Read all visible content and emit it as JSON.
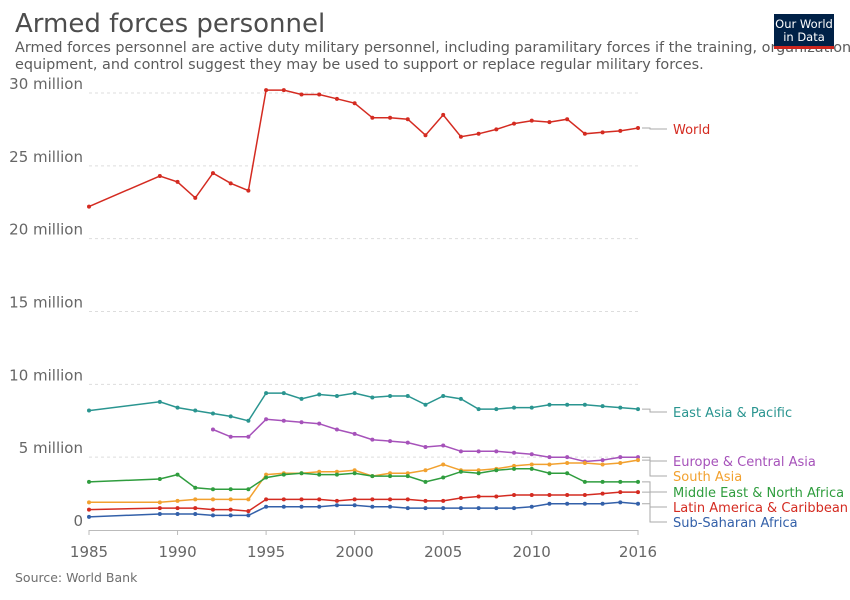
{
  "header": {
    "title": "Armed forces personnel",
    "subtitle": "Armed forces personnel are active duty military personnel, including paramilitary forces if the training, organization, equipment, and control suggest they may be used to support or replace regular military forces."
  },
  "logo": {
    "line1": "Our World",
    "line2": "in Data"
  },
  "footer": {
    "source": "Source: World Bank"
  },
  "chart_data": {
    "type": "line",
    "title": "Armed forces personnel",
    "xlim": [
      1985,
      2016
    ],
    "ylim": [
      0,
      30000000
    ],
    "x_ticks": [
      1985,
      1990,
      1995,
      2000,
      2005,
      2010,
      2016
    ],
    "y_ticks": [
      {
        "value": 0,
        "label": "0"
      },
      {
        "value": 5000000,
        "label": "5 million"
      },
      {
        "value": 10000000,
        "label": "10 million"
      },
      {
        "value": 15000000,
        "label": "15 million"
      },
      {
        "value": 20000000,
        "label": "20 million"
      },
      {
        "value": 25000000,
        "label": "25 million"
      },
      {
        "value": 30000000,
        "label": "30 million"
      }
    ],
    "grid": "horizontal-dashed",
    "legend": "right-end-labels",
    "series": [
      {
        "name": "World",
        "color": "#d42b21",
        "points": [
          [
            1985,
            22200000
          ],
          [
            1989,
            24300000
          ],
          [
            1990,
            23900000
          ],
          [
            1991,
            22800000
          ],
          [
            1992,
            24500000
          ],
          [
            1993,
            23800000
          ],
          [
            1994,
            23300000
          ],
          [
            1995,
            30200000
          ],
          [
            1996,
            30200000
          ],
          [
            1997,
            29900000
          ],
          [
            1998,
            29900000
          ],
          [
            1999,
            29600000
          ],
          [
            2000,
            29300000
          ],
          [
            2001,
            28300000
          ],
          [
            2002,
            28300000
          ],
          [
            2003,
            28200000
          ],
          [
            2004,
            27100000
          ],
          [
            2005,
            28500000
          ],
          [
            2006,
            27000000
          ],
          [
            2007,
            27200000
          ],
          [
            2008,
            27500000
          ],
          [
            2009,
            27900000
          ],
          [
            2010,
            28100000
          ],
          [
            2011,
            28000000
          ],
          [
            2012,
            28200000
          ],
          [
            2013,
            27200000
          ],
          [
            2014,
            27300000
          ],
          [
            2015,
            27400000
          ],
          [
            2016,
            27600000
          ]
        ]
      },
      {
        "name": "East Asia & Pacific",
        "color": "#2a9590",
        "points": [
          [
            1985,
            8200000
          ],
          [
            1989,
            8800000
          ],
          [
            1990,
            8400000
          ],
          [
            1991,
            8200000
          ],
          [
            1992,
            8000000
          ],
          [
            1993,
            7800000
          ],
          [
            1994,
            7500000
          ],
          [
            1995,
            9400000
          ],
          [
            1996,
            9400000
          ],
          [
            1997,
            9000000
          ],
          [
            1998,
            9300000
          ],
          [
            1999,
            9200000
          ],
          [
            2000,
            9400000
          ],
          [
            2001,
            9100000
          ],
          [
            2002,
            9200000
          ],
          [
            2003,
            9200000
          ],
          [
            2004,
            8600000
          ],
          [
            2005,
            9200000
          ],
          [
            2006,
            9000000
          ],
          [
            2007,
            8300000
          ],
          [
            2008,
            8300000
          ],
          [
            2009,
            8400000
          ],
          [
            2010,
            8400000
          ],
          [
            2011,
            8600000
          ],
          [
            2012,
            8600000
          ],
          [
            2013,
            8600000
          ],
          [
            2014,
            8500000
          ],
          [
            2015,
            8400000
          ],
          [
            2016,
            8300000
          ]
        ]
      },
      {
        "name": "Europe & Central Asia",
        "color": "#a652ba",
        "points": [
          [
            1992,
            6900000
          ],
          [
            1993,
            6400000
          ],
          [
            1994,
            6400000
          ],
          [
            1995,
            7600000
          ],
          [
            1996,
            7500000
          ],
          [
            1997,
            7400000
          ],
          [
            1998,
            7300000
          ],
          [
            1999,
            6900000
          ],
          [
            2000,
            6600000
          ],
          [
            2001,
            6200000
          ],
          [
            2002,
            6100000
          ],
          [
            2003,
            6000000
          ],
          [
            2004,
            5700000
          ],
          [
            2005,
            5800000
          ],
          [
            2006,
            5400000
          ],
          [
            2007,
            5400000
          ],
          [
            2008,
            5400000
          ],
          [
            2009,
            5300000
          ],
          [
            2010,
            5200000
          ],
          [
            2011,
            5000000
          ],
          [
            2012,
            5000000
          ],
          [
            2013,
            4700000
          ],
          [
            2014,
            4800000
          ],
          [
            2015,
            5000000
          ],
          [
            2016,
            5000000
          ]
        ]
      },
      {
        "name": "South Asia",
        "color": "#f2a12f",
        "points": [
          [
            1985,
            1900000
          ],
          [
            1989,
            1900000
          ],
          [
            1990,
            2000000
          ],
          [
            1991,
            2100000
          ],
          [
            1992,
            2100000
          ],
          [
            1993,
            2100000
          ],
          [
            1994,
            2100000
          ],
          [
            1995,
            3800000
          ],
          [
            1996,
            3900000
          ],
          [
            1997,
            3900000
          ],
          [
            1998,
            4000000
          ],
          [
            1999,
            4000000
          ],
          [
            2000,
            4100000
          ],
          [
            2001,
            3700000
          ],
          [
            2002,
            3900000
          ],
          [
            2003,
            3900000
          ],
          [
            2004,
            4100000
          ],
          [
            2005,
            4500000
          ],
          [
            2006,
            4100000
          ],
          [
            2007,
            4100000
          ],
          [
            2008,
            4200000
          ],
          [
            2009,
            4400000
          ],
          [
            2010,
            4500000
          ],
          [
            2011,
            4500000
          ],
          [
            2012,
            4600000
          ],
          [
            2013,
            4600000
          ],
          [
            2014,
            4500000
          ],
          [
            2015,
            4600000
          ],
          [
            2016,
            4800000
          ]
        ]
      },
      {
        "name": "Middle East & North Africa",
        "color": "#2f9d3e",
        "points": [
          [
            1985,
            3300000
          ],
          [
            1989,
            3500000
          ],
          [
            1990,
            3800000
          ],
          [
            1991,
            2900000
          ],
          [
            1992,
            2800000
          ],
          [
            1993,
            2800000
          ],
          [
            1994,
            2800000
          ],
          [
            1995,
            3600000
          ],
          [
            1996,
            3800000
          ],
          [
            1997,
            3900000
          ],
          [
            1998,
            3800000
          ],
          [
            1999,
            3800000
          ],
          [
            2000,
            3900000
          ],
          [
            2001,
            3700000
          ],
          [
            2002,
            3700000
          ],
          [
            2003,
            3700000
          ],
          [
            2004,
            3300000
          ],
          [
            2005,
            3600000
          ],
          [
            2006,
            4000000
          ],
          [
            2007,
            3900000
          ],
          [
            2008,
            4100000
          ],
          [
            2009,
            4200000
          ],
          [
            2010,
            4200000
          ],
          [
            2011,
            3900000
          ],
          [
            2012,
            3900000
          ],
          [
            2013,
            3300000
          ],
          [
            2014,
            3300000
          ],
          [
            2015,
            3300000
          ],
          [
            2016,
            3300000
          ]
        ]
      },
      {
        "name": "Latin America & Caribbean",
        "color": "#d42b21",
        "points": [
          [
            1985,
            1400000
          ],
          [
            1989,
            1500000
          ],
          [
            1990,
            1500000
          ],
          [
            1991,
            1500000
          ],
          [
            1992,
            1400000
          ],
          [
            1993,
            1400000
          ],
          [
            1994,
            1300000
          ],
          [
            1995,
            2100000
          ],
          [
            1996,
            2100000
          ],
          [
            1997,
            2100000
          ],
          [
            1998,
            2100000
          ],
          [
            1999,
            2000000
          ],
          [
            2000,
            2100000
          ],
          [
            2001,
            2100000
          ],
          [
            2002,
            2100000
          ],
          [
            2003,
            2100000
          ],
          [
            2004,
            2000000
          ],
          [
            2005,
            2000000
          ],
          [
            2006,
            2200000
          ],
          [
            2007,
            2300000
          ],
          [
            2008,
            2300000
          ],
          [
            2009,
            2400000
          ],
          [
            2010,
            2400000
          ],
          [
            2011,
            2400000
          ],
          [
            2012,
            2400000
          ],
          [
            2013,
            2400000
          ],
          [
            2014,
            2500000
          ],
          [
            2015,
            2600000
          ],
          [
            2016,
            2600000
          ]
        ]
      },
      {
        "name": "Sub-Saharan Africa",
        "color": "#3360a9",
        "points": [
          [
            1985,
            900000
          ],
          [
            1989,
            1100000
          ],
          [
            1990,
            1100000
          ],
          [
            1991,
            1100000
          ],
          [
            1992,
            1000000
          ],
          [
            1993,
            1000000
          ],
          [
            1994,
            1000000
          ],
          [
            1995,
            1600000
          ],
          [
            1996,
            1600000
          ],
          [
            1997,
            1600000
          ],
          [
            1998,
            1600000
          ],
          [
            1999,
            1700000
          ],
          [
            2000,
            1700000
          ],
          [
            2001,
            1600000
          ],
          [
            2002,
            1600000
          ],
          [
            2003,
            1500000
          ],
          [
            2004,
            1500000
          ],
          [
            2005,
            1500000
          ],
          [
            2006,
            1500000
          ],
          [
            2007,
            1500000
          ],
          [
            2008,
            1500000
          ],
          [
            2009,
            1500000
          ],
          [
            2010,
            1600000
          ],
          [
            2011,
            1800000
          ],
          [
            2012,
            1800000
          ],
          [
            2013,
            1800000
          ],
          [
            2014,
            1800000
          ],
          [
            2015,
            1900000
          ],
          [
            2016,
            1800000
          ]
        ]
      }
    ]
  }
}
